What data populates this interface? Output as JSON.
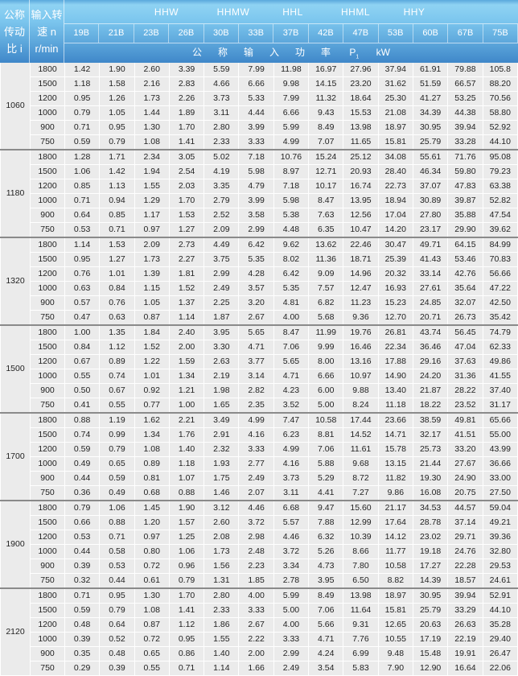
{
  "header": {
    "ratio_label_lines": [
      "公称",
      "传动",
      "比 i"
    ],
    "speed_label_lines": [
      "输入转",
      "速 n",
      "r/min"
    ],
    "series": [
      "HHW",
      "HHMW",
      "HHL",
      "HHML",
      "HHY"
    ],
    "models": [
      "19B",
      "21B",
      "23B",
      "26B",
      "30B",
      "33B",
      "37B",
      "42B",
      "47B",
      "53B",
      "60B",
      "67B",
      "75B"
    ],
    "power_label": "公称输入功率",
    "power_symbol": "P",
    "power_subscript": "1",
    "power_unit": "kW"
  },
  "colors": {
    "header_top": "#8fd3f3",
    "header_bottom": "#3f87c9",
    "cell_bg": "#ebebeb",
    "group_divider": "#8a8a8a"
  },
  "groups": [
    {
      "ratio": "1060",
      "rows": [
        {
          "speed": "1800",
          "values": [
            "1.42",
            "1.90",
            "2.60",
            "3.39",
            "5.59",
            "7.99",
            "11.98",
            "16.97",
            "27.96",
            "37.94",
            "61.91",
            "79.88",
            "105.8"
          ]
        },
        {
          "speed": "1500",
          "values": [
            "1.18",
            "1.58",
            "2.16",
            "2.83",
            "4.66",
            "6.66",
            "9.98",
            "14.15",
            "23.20",
            "31.62",
            "51.59",
            "66.57",
            "88.20"
          ]
        },
        {
          "speed": "1200",
          "values": [
            "0.95",
            "1.26",
            "1.73",
            "2.26",
            "3.73",
            "5.33",
            "7.99",
            "11.32",
            "18.64",
            "25.30",
            "41.27",
            "53.25",
            "70.56"
          ]
        },
        {
          "speed": "1000",
          "values": [
            "0.79",
            "1.05",
            "1.44",
            "1.89",
            "3.11",
            "4.44",
            "6.66",
            "9.43",
            "15.53",
            "21.08",
            "34.39",
            "44.38",
            "58.80"
          ]
        },
        {
          "speed": "900",
          "values": [
            "0.71",
            "0.95",
            "1.30",
            "1.70",
            "2.80",
            "3.99",
            "5.99",
            "8.49",
            "13.98",
            "18.97",
            "30.95",
            "39.94",
            "52.92"
          ]
        },
        {
          "speed": "750",
          "values": [
            "0.59",
            "0.79",
            "1.08",
            "1.41",
            "2.33",
            "3.33",
            "4.99",
            "7.07",
            "11.65",
            "15.81",
            "25.79",
            "33.28",
            "44.10"
          ]
        }
      ]
    },
    {
      "ratio": "1180",
      "rows": [
        {
          "speed": "1800",
          "values": [
            "1.28",
            "1.71",
            "2.34",
            "3.05",
            "5.02",
            "7.18",
            "10.76",
            "15.24",
            "25.12",
            "34.08",
            "55.61",
            "71.76",
            "95.08"
          ]
        },
        {
          "speed": "1500",
          "values": [
            "1.06",
            "1.42",
            "1.94",
            "2.54",
            "4.19",
            "5.98",
            "8.97",
            "12.71",
            "20.93",
            "28.40",
            "46.34",
            "59.80",
            "79.23"
          ]
        },
        {
          "speed": "1200",
          "values": [
            "0.85",
            "1.13",
            "1.55",
            "2.03",
            "3.35",
            "4.79",
            "7.18",
            "10.17",
            "16.74",
            "22.73",
            "37.07",
            "47.83",
            "63.38"
          ]
        },
        {
          "speed": "1000",
          "values": [
            "0.71",
            "0.94",
            "1.29",
            "1.70",
            "2.79",
            "3.99",
            "5.98",
            "8.47",
            "13.95",
            "18.94",
            "30.89",
            "39.87",
            "52.82"
          ]
        },
        {
          "speed": "900",
          "values": [
            "0.64",
            "0.85",
            "1.17",
            "1.53",
            "2.52",
            "3.58",
            "5.38",
            "7.63",
            "12.56",
            "17.04",
            "27.80",
            "35.88",
            "47.54"
          ]
        },
        {
          "speed": "750",
          "values": [
            "0.53",
            "0.71",
            "0.97",
            "1.27",
            "2.09",
            "2.99",
            "4.48",
            "6.35",
            "10.47",
            "14.20",
            "23.17",
            "29.90",
            "39.62"
          ]
        }
      ]
    },
    {
      "ratio": "1320",
      "rows": [
        {
          "speed": "1800",
          "values": [
            "1.14",
            "1.53",
            "2.09",
            "2.73",
            "4.49",
            "6.42",
            "9.62",
            "13.62",
            "22.46",
            "30.47",
            "49.71",
            "64.15",
            "84.99"
          ]
        },
        {
          "speed": "1500",
          "values": [
            "0.95",
            "1.27",
            "1.73",
            "2.27",
            "3.75",
            "5.35",
            "8.02",
            "11.36",
            "18.71",
            "25.39",
            "41.43",
            "53.46",
            "70.83"
          ]
        },
        {
          "speed": "1200",
          "values": [
            "0.76",
            "1.01",
            "1.39",
            "1.81",
            "2.99",
            "4.28",
            "6.42",
            "9.09",
            "14.96",
            "20.32",
            "33.14",
            "42.76",
            "56.66"
          ]
        },
        {
          "speed": "1000",
          "values": [
            "0.63",
            "0.84",
            "1.15",
            "1.52",
            "2.49",
            "3.57",
            "5.35",
            "7.57",
            "12.47",
            "16.93",
            "27.61",
            "35.64",
            "47.22"
          ]
        },
        {
          "speed": "900",
          "values": [
            "0.57",
            "0.76",
            "1.05",
            "1.37",
            "2.25",
            "3.20",
            "4.81",
            "6.82",
            "11.23",
            "15.23",
            "24.85",
            "32.07",
            "42.50"
          ]
        },
        {
          "speed": "750",
          "values": [
            "0.47",
            "0.63",
            "0.87",
            "1.14",
            "1.87",
            "2.67",
            "4.00",
            "5.68",
            "9.36",
            "12.70",
            "20.71",
            "26.73",
            "35.42"
          ]
        }
      ]
    },
    {
      "ratio": "1500",
      "rows": [
        {
          "speed": "1800",
          "values": [
            "1.00",
            "1.35",
            "1.84",
            "2.40",
            "3.95",
            "5.65",
            "8.47",
            "11.99",
            "19.76",
            "26.81",
            "43.74",
            "56.45",
            "74.79"
          ]
        },
        {
          "speed": "1500",
          "values": [
            "0.84",
            "1.12",
            "1.52",
            "2.00",
            "3.30",
            "4.71",
            "7.06",
            "9.99",
            "16.46",
            "22.34",
            "36.46",
            "47.04",
            "62.33"
          ]
        },
        {
          "speed": "1200",
          "values": [
            "0.67",
            "0.89",
            "1.22",
            "1.59",
            "2.63",
            "3.77",
            "5.65",
            "8.00",
            "13.16",
            "17.88",
            "29.16",
            "37.63",
            "49.86"
          ]
        },
        {
          "speed": "1000",
          "values": [
            "0.55",
            "0.74",
            "1.01",
            "1.34",
            "2.19",
            "3.14",
            "4.71",
            "6.66",
            "10.97",
            "14.90",
            "24.20",
            "31.36",
            "41.55"
          ]
        },
        {
          "speed": "900",
          "values": [
            "0.50",
            "0.67",
            "0.92",
            "1.21",
            "1.98",
            "2.82",
            "4.23",
            "6.00",
            "9.88",
            "13.40",
            "21.87",
            "28.22",
            "37.40"
          ]
        },
        {
          "speed": "750",
          "values": [
            "0.41",
            "0.55",
            "0.77",
            "1.00",
            "1.65",
            "2.35",
            "3.52",
            "5.00",
            "8.24",
            "11.18",
            "18.22",
            "23.52",
            "31.17"
          ]
        }
      ]
    },
    {
      "ratio": "1700",
      "rows": [
        {
          "speed": "1800",
          "values": [
            "0.88",
            "1.19",
            "1.62",
            "2.21",
            "3.49",
            "4.99",
            "7.47",
            "10.58",
            "17.44",
            "23.66",
            "38.59",
            "49.81",
            "65.66"
          ]
        },
        {
          "speed": "1500",
          "values": [
            "0.74",
            "0.99",
            "1.34",
            "1.76",
            "2.91",
            "4.16",
            "6.23",
            "8.81",
            "14.52",
            "14.71",
            "32.17",
            "41.51",
            "55.00"
          ]
        },
        {
          "speed": "1200",
          "values": [
            "0.59",
            "0.79",
            "1.08",
            "1.40",
            "2.32",
            "3.33",
            "4.99",
            "7.06",
            "11.61",
            "15.78",
            "25.73",
            "33.20",
            "43.99"
          ]
        },
        {
          "speed": "1000",
          "values": [
            "0.49",
            "0.65",
            "0.89",
            "1.18",
            "1.93",
            "2.77",
            "4.16",
            "5.88",
            "9.68",
            "13.15",
            "21.44",
            "27.67",
            "36.66"
          ]
        },
        {
          "speed": "900",
          "values": [
            "0.44",
            "0.59",
            "0.81",
            "1.07",
            "1.75",
            "2.49",
            "3.73",
            "5.29",
            "8.72",
            "11.82",
            "19.30",
            "24.90",
            "33.00"
          ]
        },
        {
          "speed": "750",
          "values": [
            "0.36",
            "0.49",
            "0.68",
            "0.88",
            "1.46",
            "2.07",
            "3.11",
            "4.41",
            "7.27",
            "9.86",
            "16.08",
            "20.75",
            "27.50"
          ]
        }
      ]
    },
    {
      "ratio": "1900",
      "rows": [
        {
          "speed": "1800",
          "values": [
            "0.79",
            "1.06",
            "1.45",
            "1.90",
            "3.12",
            "4.46",
            "6.68",
            "9.47",
            "15.60",
            "21.17",
            "34.53",
            "44.57",
            "59.04"
          ]
        },
        {
          "speed": "1500",
          "values": [
            "0.66",
            "0.88",
            "1.20",
            "1.57",
            "2.60",
            "3.72",
            "5.57",
            "7.88",
            "12.99",
            "17.64",
            "28.78",
            "37.14",
            "49.21"
          ]
        },
        {
          "speed": "1200",
          "values": [
            "0.53",
            "0.71",
            "0.97",
            "1.25",
            "2.08",
            "2.98",
            "4.46",
            "6.32",
            "10.39",
            "14.12",
            "23.02",
            "29.71",
            "39.36"
          ]
        },
        {
          "speed": "1000",
          "values": [
            "0.44",
            "0.58",
            "0.80",
            "1.06",
            "1.73",
            "2.48",
            "3.72",
            "5.26",
            "8.66",
            "11.77",
            "19.18",
            "24.76",
            "32.80"
          ]
        },
        {
          "speed": "900",
          "values": [
            "0.39",
            "0.53",
            "0.72",
            "0.96",
            "1.56",
            "2.23",
            "3.34",
            "4.73",
            "7.80",
            "10.58",
            "17.27",
            "22.28",
            "29.53"
          ]
        },
        {
          "speed": "750",
          "values": [
            "0.32",
            "0.44",
            "0.61",
            "0.79",
            "1.31",
            "1.85",
            "2.78",
            "3.95",
            "6.50",
            "8.82",
            "14.39",
            "18.57",
            "24.61"
          ]
        }
      ]
    },
    {
      "ratio": "2120",
      "rows": [
        {
          "speed": "1800",
          "values": [
            "0.71",
            "0.95",
            "1.30",
            "1.70",
            "2.80",
            "4.00",
            "5.99",
            "8.49",
            "13.98",
            "18.97",
            "30.95",
            "39.94",
            "52.91"
          ]
        },
        {
          "speed": "1500",
          "values": [
            "0.59",
            "0.79",
            "1.08",
            "1.41",
            "2.33",
            "3.33",
            "5.00",
            "7.06",
            "11.64",
            "15.81",
            "25.79",
            "33.29",
            "44.10"
          ]
        },
        {
          "speed": "1200",
          "values": [
            "0.48",
            "0.64",
            "0.87",
            "1.12",
            "1.86",
            "2.67",
            "4.00",
            "5.66",
            "9.31",
            "12.65",
            "20.63",
            "26.63",
            "35.28"
          ]
        },
        {
          "speed": "1000",
          "values": [
            "0.39",
            "0.52",
            "0.72",
            "0.95",
            "1.55",
            "2.22",
            "3.33",
            "4.71",
            "7.76",
            "10.55",
            "17.19",
            "22.19",
            "29.40"
          ]
        },
        {
          "speed": "900",
          "values": [
            "0.35",
            "0.48",
            "0.65",
            "0.86",
            "1.40",
            "2.00",
            "2.99",
            "4.24",
            "6.99",
            "9.48",
            "15.48",
            "19.91",
            "26.47"
          ]
        },
        {
          "speed": "750",
          "values": [
            "0.29",
            "0.39",
            "0.55",
            "0.71",
            "1.14",
            "1.66",
            "2.49",
            "3.54",
            "5.83",
            "7.90",
            "12.90",
            "16.64",
            "22.06"
          ]
        }
      ]
    }
  ]
}
